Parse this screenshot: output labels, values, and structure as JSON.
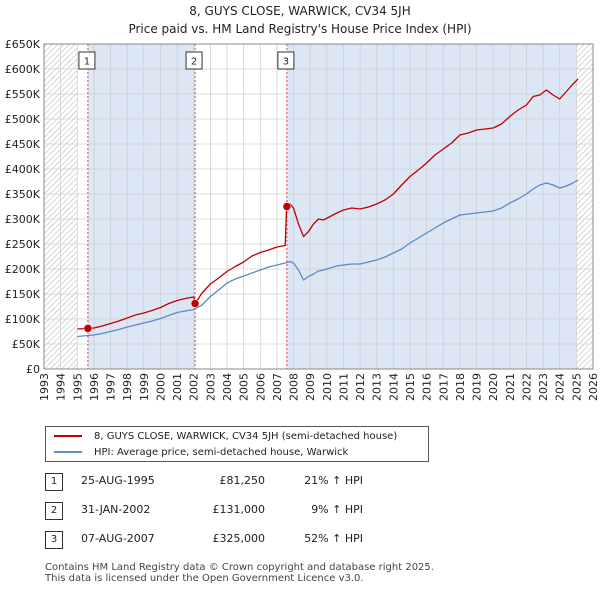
{
  "header": {
    "title_line1": "8, GUYS CLOSE, WARWICK, CV34 5JH",
    "title_line2": "Price paid vs. HM Land Registry's House Price Index (HPI)"
  },
  "colors": {
    "property": "#c00000",
    "hpi": "#5b8bc5",
    "shade": "#dde6f4",
    "grid": "#d0d0d0",
    "marker_line": "#dd4444"
  },
  "chart_data": {
    "type": "line",
    "xlim": [
      1993,
      2026
    ],
    "ylim": [
      0,
      650000
    ],
    "x_ticks": [
      "1993",
      "1994",
      "1995",
      "1996",
      "1997",
      "1998",
      "1999",
      "2000",
      "2001",
      "2002",
      "2003",
      "2004",
      "2005",
      "2006",
      "2007",
      "2008",
      "2009",
      "2010",
      "2011",
      "2012",
      "2013",
      "2014",
      "2015",
      "2016",
      "2017",
      "2018",
      "2019",
      "2020",
      "2021",
      "2022",
      "2023",
      "2024",
      "2025",
      "2026"
    ],
    "y_ticks": [
      "£0",
      "£50K",
      "£100K",
      "£150K",
      "£200K",
      "£250K",
      "£300K",
      "£350K",
      "£400K",
      "£450K",
      "£500K",
      "£550K",
      "£600K",
      "£650K"
    ],
    "hatched_before": 1995.0,
    "hatched_after": 2025.0,
    "series": [
      {
        "name": "8, GUYS CLOSE, WARWICK, CV34 5JH (semi-detached house)",
        "x": [
          1995.0,
          1995.64,
          1996.0,
          1996.5,
          1997.0,
          1997.5,
          1998.0,
          1998.5,
          1999.0,
          1999.5,
          2000.0,
          2000.5,
          2001.0,
          2001.5,
          2002.0,
          2002.08,
          2002.5,
          2003.0,
          2003.5,
          2004.0,
          2004.5,
          2005.0,
          2005.5,
          2006.0,
          2006.5,
          2007.0,
          2007.5,
          2007.58,
          2007.8,
          2008.0,
          2008.3,
          2008.6,
          2008.9,
          2009.2,
          2009.5,
          2009.8,
          2010.2,
          2010.6,
          2011.0,
          2011.5,
          2012.0,
          2012.5,
          2013.0,
          2013.5,
          2014.0,
          2014.5,
          2015.0,
          2015.5,
          2016.0,
          2016.5,
          2017.0,
          2017.5,
          2018.0,
          2018.5,
          2019.0,
          2019.5,
          2020.0,
          2020.5,
          2021.0,
          2021.5,
          2022.0,
          2022.4,
          2022.8,
          2023.2,
          2023.6,
          2024.0,
          2024.4,
          2024.8,
          2025.1
        ],
        "values": [
          80000,
          81250,
          82000,
          86000,
          91000,
          96000,
          102000,
          108000,
          112000,
          117000,
          123000,
          131000,
          137000,
          141000,
          144000,
          131000,
          152000,
          170000,
          182000,
          195000,
          205000,
          214000,
          226000,
          233000,
          238000,
          244000,
          247000,
          325000,
          330000,
          322000,
          290000,
          265000,
          275000,
          290000,
          300000,
          298000,
          305000,
          312000,
          318000,
          322000,
          320000,
          324000,
          330000,
          338000,
          350000,
          368000,
          385000,
          398000,
          412000,
          428000,
          440000,
          452000,
          468000,
          472000,
          478000,
          480000,
          482000,
          490000,
          505000,
          518000,
          528000,
          545000,
          548000,
          558000,
          548000,
          540000,
          555000,
          570000,
          580000
        ]
      },
      {
        "name": "HPI: Average price, semi-detached house, Warwick",
        "x": [
          1995.0,
          1995.64,
          1996.0,
          1996.5,
          1997.0,
          1997.5,
          1998.0,
          1998.5,
          1999.0,
          1999.5,
          2000.0,
          2000.5,
          2001.0,
          2001.5,
          2002.0,
          2002.5,
          2003.0,
          2003.5,
          2004.0,
          2004.5,
          2005.0,
          2005.5,
          2006.0,
          2006.5,
          2007.0,
          2007.5,
          2007.8,
          2008.0,
          2008.3,
          2008.6,
          2008.9,
          2009.2,
          2009.5,
          2009.8,
          2010.2,
          2010.6,
          2011.0,
          2011.5,
          2012.0,
          2012.5,
          2013.0,
          2013.5,
          2014.0,
          2014.5,
          2015.0,
          2015.5,
          2016.0,
          2016.5,
          2017.0,
          2017.5,
          2018.0,
          2018.5,
          2019.0,
          2019.5,
          2020.0,
          2020.5,
          2021.0,
          2021.5,
          2022.0,
          2022.4,
          2022.8,
          2023.2,
          2023.6,
          2024.0,
          2024.4,
          2024.8,
          2025.1
        ],
        "values": [
          65000,
          67000,
          68000,
          71000,
          75000,
          79000,
          84000,
          88000,
          92000,
          96000,
          101000,
          107000,
          113000,
          116000,
          119000,
          128000,
          145000,
          158000,
          172000,
          180000,
          186000,
          192000,
          198000,
          204000,
          208000,
          212000,
          215000,
          212000,
          198000,
          178000,
          185000,
          190000,
          196000,
          198000,
          202000,
          206000,
          208000,
          210000,
          210000,
          214000,
          218000,
          224000,
          232000,
          240000,
          252000,
          262000,
          272000,
          282000,
          292000,
          300000,
          308000,
          310000,
          312000,
          314000,
          316000,
          322000,
          332000,
          340000,
          350000,
          360000,
          368000,
          372000,
          368000,
          362000,
          366000,
          372000,
          378000
        ]
      }
    ],
    "sale_markers": [
      {
        "label": "1",
        "x": 1995.64,
        "y": 81250
      },
      {
        "label": "2",
        "x": 2002.08,
        "y": 131000
      },
      {
        "label": "3",
        "x": 2007.6,
        "y": 325000
      }
    ]
  },
  "legend": {
    "property_label": "8, GUYS CLOSE, WARWICK, CV34 5JH (semi-detached house)",
    "hpi_label": "HPI: Average price, semi-detached house, Warwick"
  },
  "sales": [
    {
      "num": "1",
      "date": "25-AUG-1995",
      "price": "£81,250",
      "hpi": "21% ↑ HPI"
    },
    {
      "num": "2",
      "date": "31-JAN-2002",
      "price": "£131,000",
      "hpi": "9% ↑ HPI"
    },
    {
      "num": "3",
      "date": "07-AUG-2007",
      "price": "£325,000",
      "hpi": "52% ↑ HPI"
    }
  ],
  "footer": {
    "line1": "Contains HM Land Registry data © Crown copyright and database right 2025.",
    "line2": "This data is licensed under the Open Government Licence v3.0."
  }
}
